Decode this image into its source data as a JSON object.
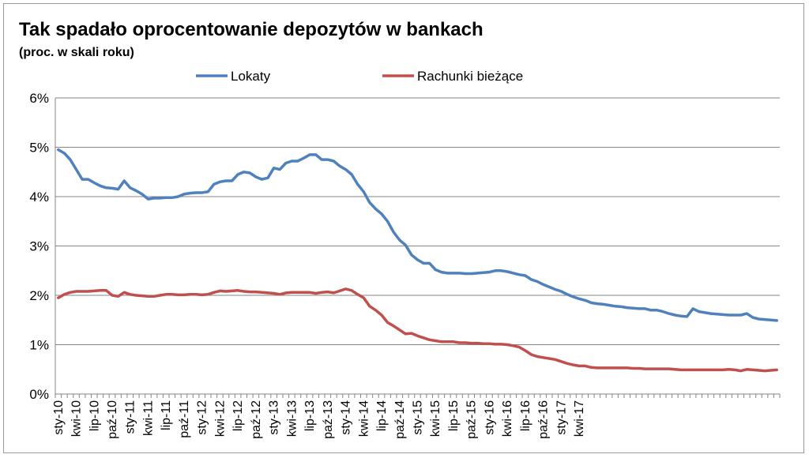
{
  "chart_data": {
    "type": "line",
    "title": "Tak spadało oprocentowanie depozytów w bankach",
    "subtitle": "(proc. w skali roku)",
    "ylim": [
      0,
      6
    ],
    "yticks": [
      "0%",
      "1%",
      "2%",
      "3%",
      "4%",
      "5%",
      "6%"
    ],
    "legend_position": "top",
    "grid": true,
    "x_tick_labels": [
      "sty-10",
      "kwi-10",
      "lip-10",
      "paź-10",
      "sty-11",
      "kwi-11",
      "lip-11",
      "paź-11",
      "sty-12",
      "kwi-12",
      "lip-12",
      "paź-12",
      "sty-13",
      "kwi-13",
      "lip-13",
      "paź-13",
      "sty-14",
      "kwi-14",
      "lip-14",
      "paź-14",
      "sty-15",
      "kwi-15",
      "lip-15",
      "paź-15",
      "sty-16",
      "kwi-16",
      "lip-16",
      "paź-16",
      "sty-17",
      "kwi-17"
    ],
    "x_points_per_tick": 3,
    "series": [
      {
        "name": "Lokaty",
        "color": "#4f81bd",
        "values": [
          4.95,
          4.88,
          4.75,
          4.55,
          4.35,
          4.35,
          4.28,
          4.22,
          4.18,
          4.17,
          4.15,
          4.32,
          4.18,
          4.12,
          4.05,
          3.95,
          3.97,
          3.97,
          3.98,
          3.98,
          4.0,
          4.05,
          4.07,
          4.08,
          4.08,
          4.1,
          4.25,
          4.3,
          4.32,
          4.32,
          4.45,
          4.5,
          4.48,
          4.4,
          4.35,
          4.38,
          4.58,
          4.55,
          4.68,
          4.72,
          4.72,
          4.78,
          4.85,
          4.85,
          4.75,
          4.75,
          4.72,
          4.62,
          4.55,
          4.45,
          4.25,
          4.1,
          3.88,
          3.75,
          3.65,
          3.5,
          3.28,
          3.12,
          3.02,
          2.82,
          2.72,
          2.65,
          2.65,
          2.52,
          2.47,
          2.45,
          2.45,
          2.45,
          2.44,
          2.44,
          2.45,
          2.46,
          2.47,
          2.5,
          2.5,
          2.48,
          2.45,
          2.42,
          2.4,
          2.32,
          2.28,
          2.22,
          2.17,
          2.12,
          2.08,
          2.02,
          1.97,
          1.93,
          1.9,
          1.85,
          1.83,
          1.82,
          1.8,
          1.78,
          1.77,
          1.75,
          1.74,
          1.73,
          1.73,
          1.7,
          1.7,
          1.67,
          1.63,
          1.6,
          1.58,
          1.57,
          1.73,
          1.67,
          1.65,
          1.63,
          1.62,
          1.61,
          1.6,
          1.6,
          1.6,
          1.63,
          1.55,
          1.52,
          1.51,
          1.5,
          1.49
        ]
      },
      {
        "name": "Rachunki bieżące",
        "color": "#c0504d",
        "values": [
          1.95,
          2.02,
          2.06,
          2.08,
          2.08,
          2.08,
          2.09,
          2.1,
          2.1,
          2.0,
          1.98,
          2.06,
          2.02,
          2.0,
          1.99,
          1.98,
          1.98,
          2.0,
          2.02,
          2.02,
          2.01,
          2.01,
          2.02,
          2.02,
          2.01,
          2.02,
          2.06,
          2.09,
          2.08,
          2.09,
          2.1,
          2.08,
          2.07,
          2.07,
          2.06,
          2.05,
          2.04,
          2.02,
          2.05,
          2.06,
          2.06,
          2.06,
          2.06,
          2.04,
          2.06,
          2.07,
          2.05,
          2.09,
          2.13,
          2.1,
          2.02,
          1.95,
          1.78,
          1.7,
          1.6,
          1.45,
          1.38,
          1.3,
          1.22,
          1.23,
          1.18,
          1.14,
          1.1,
          1.08,
          1.06,
          1.06,
          1.06,
          1.04,
          1.04,
          1.03,
          1.03,
          1.02,
          1.02,
          1.01,
          1.01,
          1.0,
          0.98,
          0.95,
          0.88,
          0.8,
          0.76,
          0.74,
          0.72,
          0.7,
          0.66,
          0.62,
          0.59,
          0.57,
          0.57,
          0.54,
          0.53,
          0.53,
          0.53,
          0.53,
          0.53,
          0.53,
          0.52,
          0.52,
          0.51,
          0.51,
          0.51,
          0.51,
          0.51,
          0.5,
          0.49,
          0.49,
          0.49,
          0.49,
          0.49,
          0.49,
          0.49,
          0.49,
          0.5,
          0.49,
          0.47,
          0.5,
          0.49,
          0.48,
          0.47,
          0.48,
          0.49
        ]
      }
    ]
  }
}
